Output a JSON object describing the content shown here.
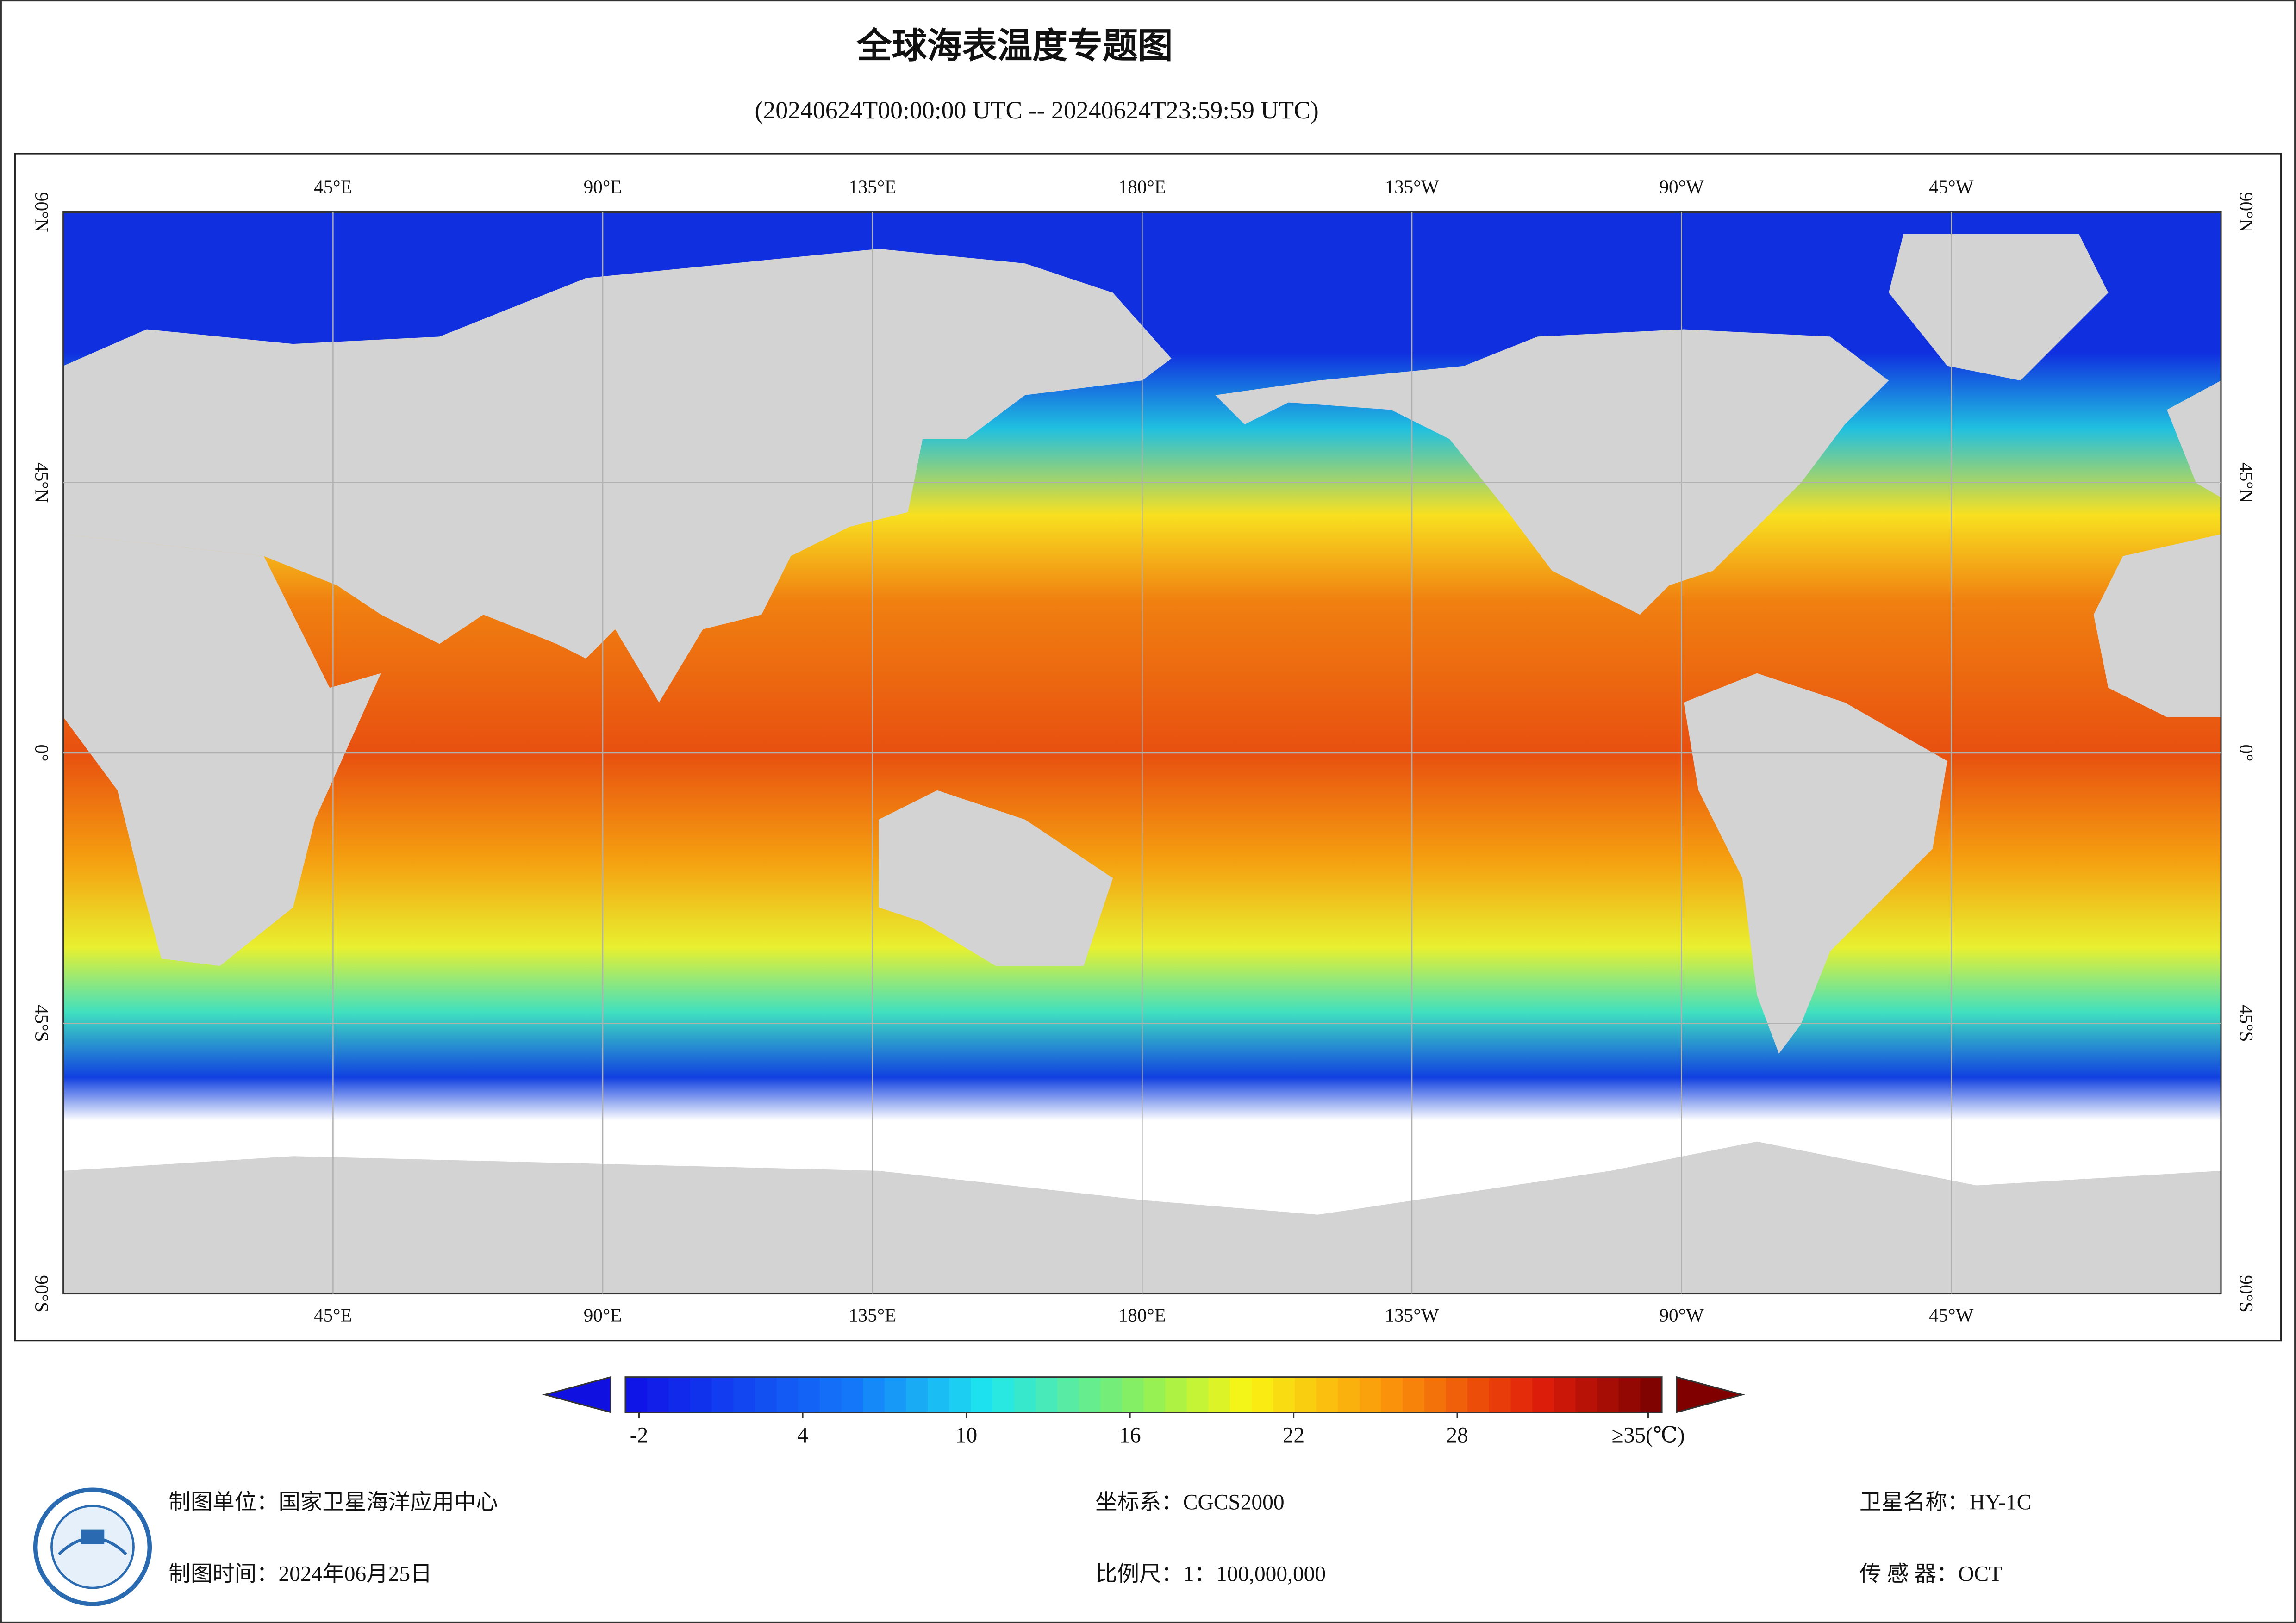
{
  "title": "全球海表温度专题图",
  "subtitle": "(20240624T00:00:00 UTC -- 20240624T23:59:59 UTC)",
  "map": {
    "lon_labels": [
      "45°E",
      "90°E",
      "135°E",
      "180°E",
      "135°W",
      "90°W",
      "45°W"
    ],
    "lat_labels": [
      "90°N",
      "45°N",
      "0°",
      "45°S",
      "90°S"
    ]
  },
  "legend": {
    "range": [
      -2.5,
      35.5
    ],
    "ticks": [
      -2,
      4,
      10,
      16,
      22,
      28,
      {
        "value": 35,
        "label": "≥35(℃)"
      }
    ]
  },
  "footer": {
    "unit": "制图单位：国家卫星海洋应用中心",
    "date": "制图时间：2024年06月25日",
    "crs": "坐标系：CGCS2000",
    "scale": "比例尺：1：100,000,000",
    "satellite": "卫星名称：HY-1C",
    "sensor": "传 感 器：OCT"
  }
}
